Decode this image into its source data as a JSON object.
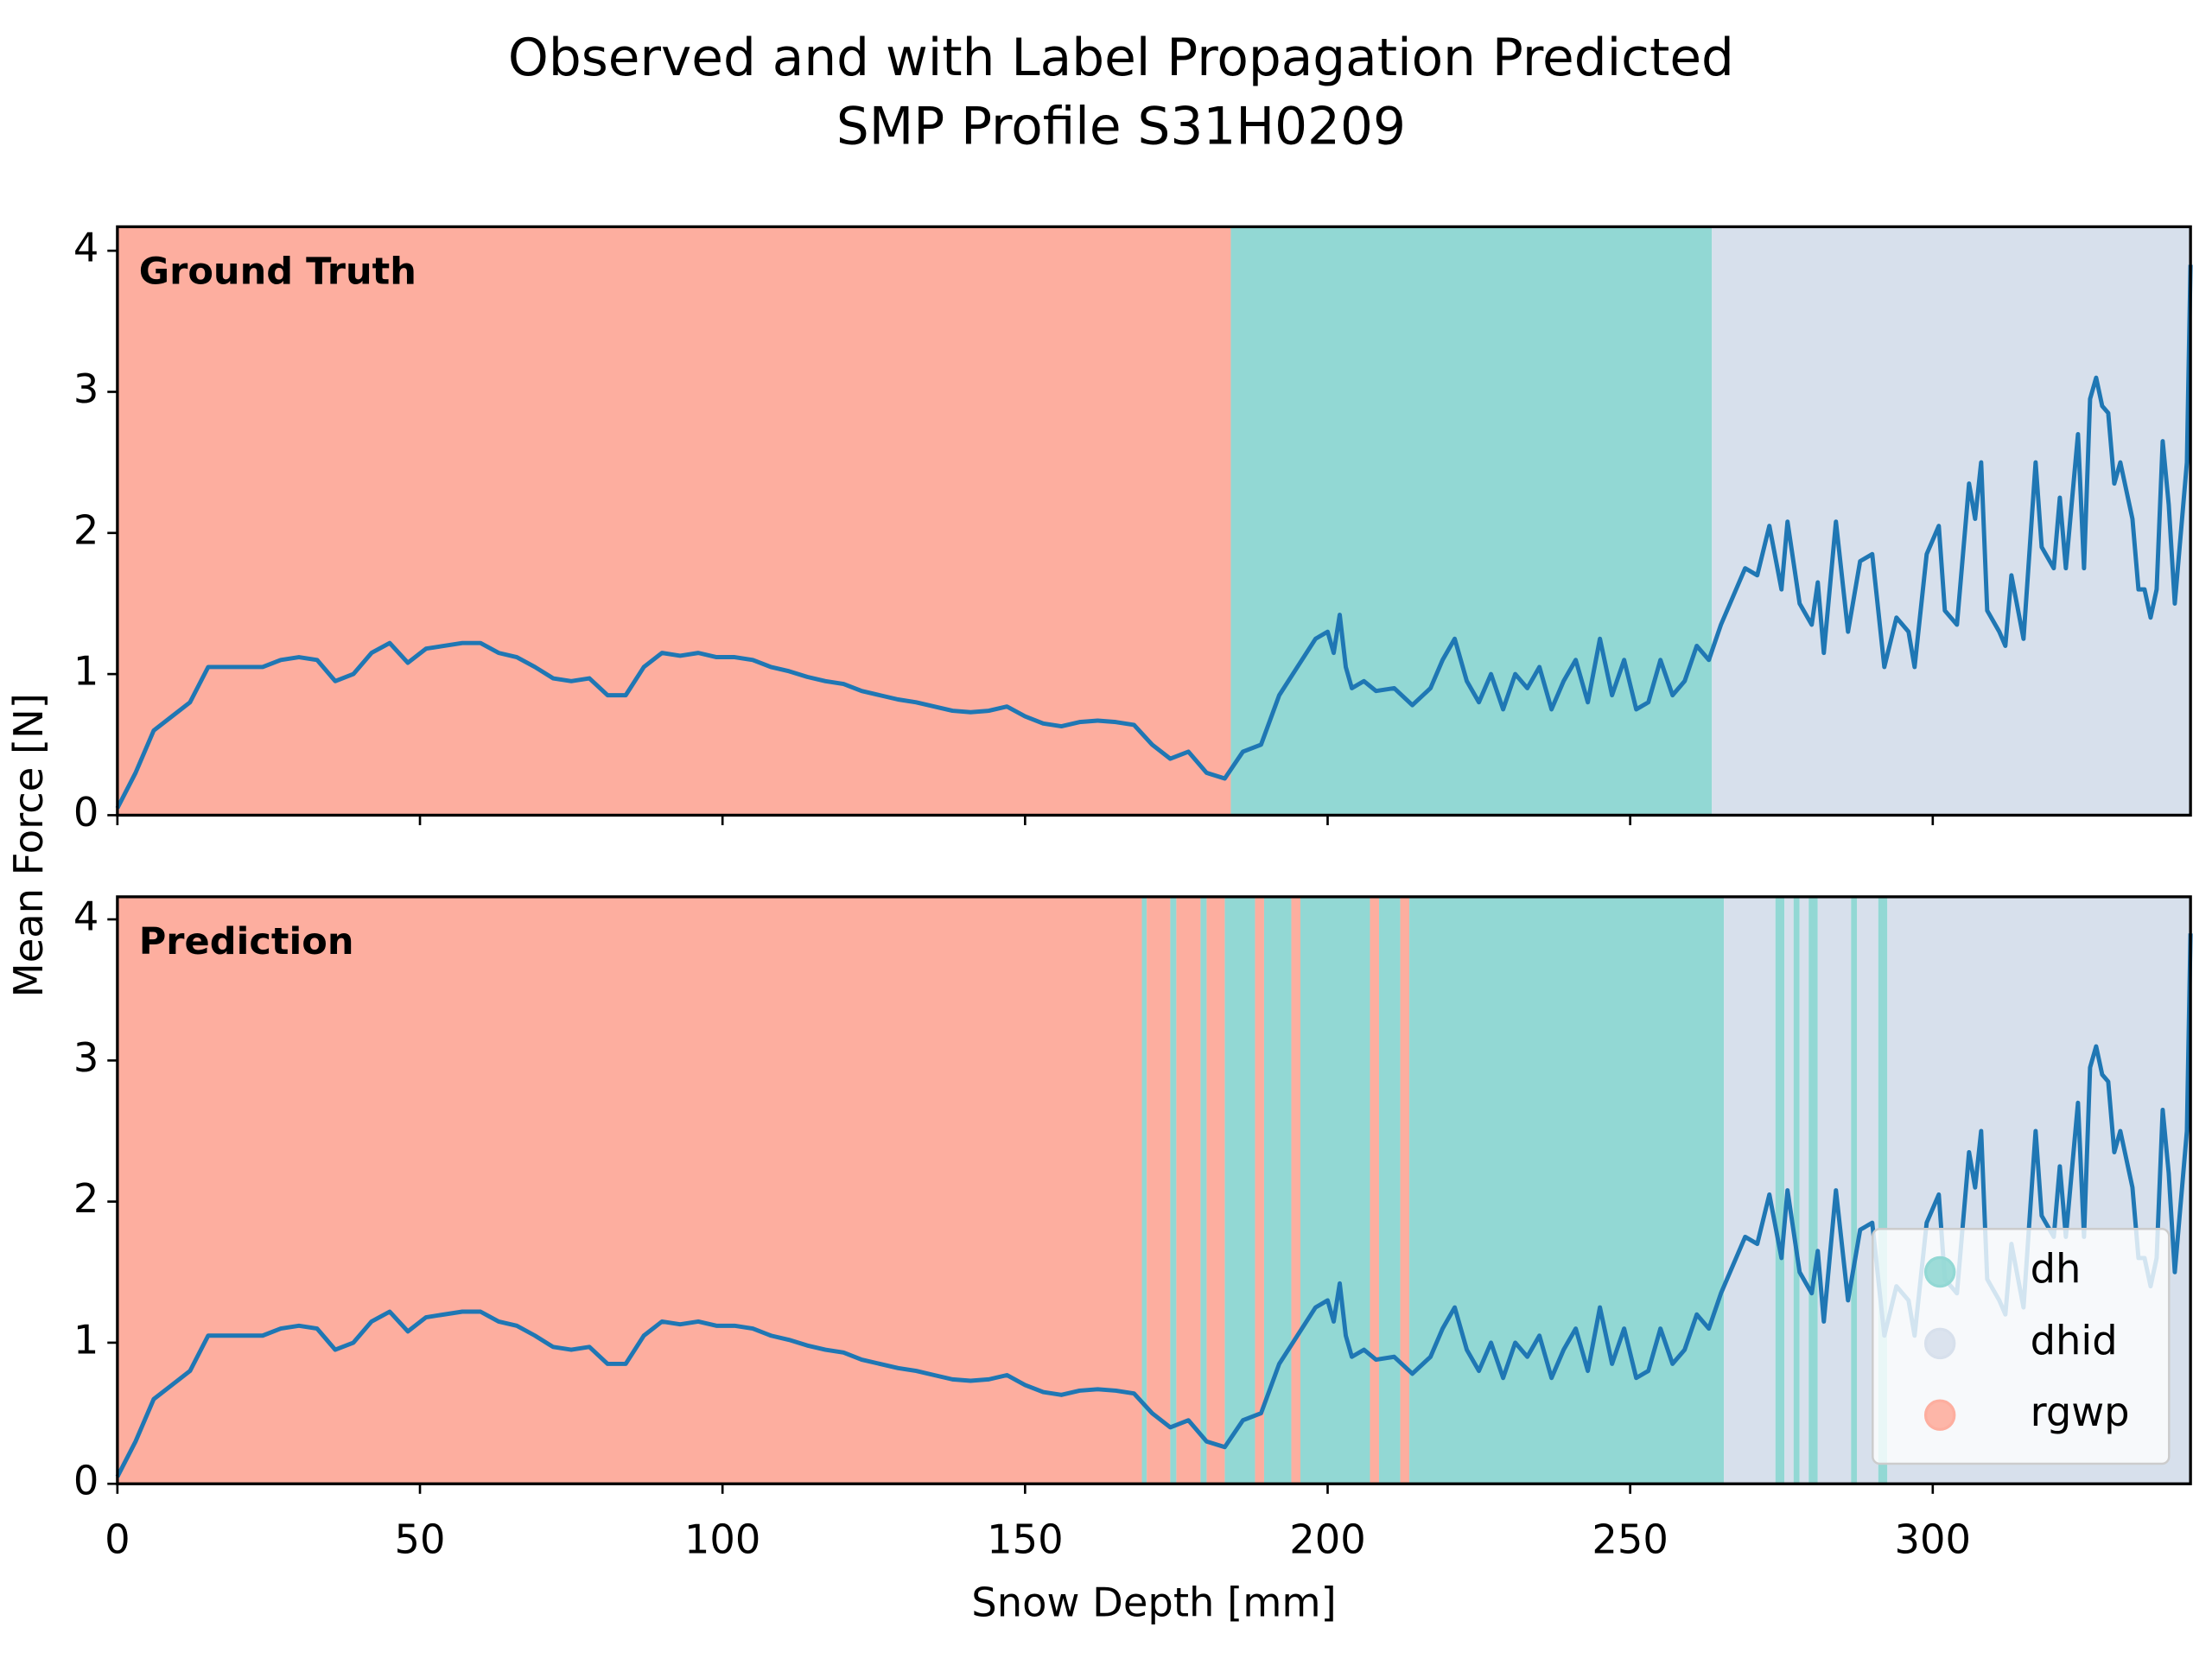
{
  "chart_data": [
    {
      "type": "line",
      "title": [
        "Observed and with Label Propagation Predicted",
        "SMP Profile S31H0209"
      ],
      "ylabel": "Mean Force [N]",
      "annotation": "Ground Truth",
      "color": "#1f77b4",
      "xlim": [
        0,
        342.6
      ],
      "ylim": [
        0,
        4.17
      ],
      "xticks": [
        0,
        50,
        100,
        150,
        200,
        250,
        300
      ],
      "yticks": [
        0,
        1,
        2,
        3,
        4
      ],
      "xticklabels": false,
      "x": [
        0,
        3,
        6,
        9,
        12,
        15,
        18,
        21,
        24,
        27,
        30,
        33,
        36,
        39,
        42,
        45,
        48,
        51,
        54,
        57,
        60,
        63,
        66,
        69,
        72,
        75,
        78,
        81,
        84,
        87,
        90,
        93,
        96,
        99,
        102,
        105,
        108,
        111,
        114,
        117,
        120,
        123,
        126,
        129,
        132,
        135,
        138,
        141,
        144,
        147,
        150,
        153,
        156,
        159,
        162,
        165,
        168,
        171,
        174,
        177,
        180,
        183,
        186,
        189,
        192,
        195,
        198,
        200,
        201,
        202,
        203,
        204,
        206,
        208,
        211,
        214,
        217,
        219,
        221,
        223,
        225,
        227,
        229,
        231,
        233,
        235,
        237,
        239,
        241,
        243,
        245,
        247,
        249,
        251,
        253,
        255,
        257,
        259,
        261,
        263,
        265,
        267,
        269,
        271,
        273,
        275,
        276,
        278,
        280,
        281,
        282,
        284,
        286,
        288,
        290,
        292,
        294,
        296,
        297,
        299,
        301,
        302,
        304,
        306,
        307,
        308,
        309,
        311,
        312,
        313,
        315,
        317,
        318,
        320,
        321,
        322,
        324,
        325,
        326,
        327,
        328,
        329,
        330,
        331,
        333,
        334,
        335,
        336,
        337,
        338,
        339,
        340,
        341,
        342,
        342.6
      ],
      "values": [
        0.05,
        0.3,
        0.6,
        0.7,
        0.8,
        1.05,
        1.05,
        1.05,
        1.05,
        1.1,
        1.12,
        1.1,
        0.95,
        1.0,
        1.15,
        1.22,
        1.08,
        1.18,
        1.2,
        1.22,
        1.22,
        1.15,
        1.12,
        1.05,
        0.97,
        0.95,
        0.97,
        0.85,
        0.85,
        1.05,
        1.15,
        1.13,
        1.15,
        1.12,
        1.12,
        1.1,
        1.05,
        1.02,
        0.98,
        0.95,
        0.93,
        0.88,
        0.85,
        0.82,
        0.8,
        0.77,
        0.74,
        0.73,
        0.74,
        0.77,
        0.7,
        0.65,
        0.63,
        0.66,
        0.67,
        0.66,
        0.64,
        0.5,
        0.4,
        0.45,
        0.3,
        0.26,
        0.45,
        0.5,
        0.85,
        1.05,
        1.25,
        1.3,
        1.15,
        1.42,
        1.05,
        0.9,
        0.95,
        0.88,
        0.9,
        0.78,
        0.9,
        1.1,
        1.25,
        0.95,
        0.8,
        1.0,
        0.75,
        1.0,
        0.9,
        1.05,
        0.75,
        0.95,
        1.1,
        0.8,
        1.25,
        0.85,
        1.1,
        0.75,
        0.8,
        1.1,
        0.85,
        0.95,
        1.2,
        1.1,
        1.35,
        1.55,
        1.75,
        1.7,
        2.05,
        1.6,
        2.08,
        1.5,
        1.35,
        1.65,
        1.15,
        2.08,
        1.3,
        1.8,
        1.85,
        1.05,
        1.4,
        1.3,
        1.05,
        1.85,
        2.05,
        1.45,
        1.35,
        2.35,
        2.1,
        2.5,
        1.45,
        1.3,
        1.2,
        1.7,
        1.25,
        2.5,
        1.9,
        1.75,
        2.25,
        1.75,
        2.7,
        1.75,
        2.95,
        3.1,
        2.9,
        2.85,
        2.35,
        2.5,
        2.1,
        1.6,
        1.6,
        1.4,
        1.6,
        2.65,
        2.2,
        1.5,
        2.0,
        2.5,
        3.9
      ],
      "regions": [
        {
          "start": 0,
          "end": 184,
          "class": "rgwp",
          "color": "#fdae9f"
        },
        {
          "start": 184,
          "end": 263.5,
          "class": "dh",
          "color": "#92d8d4"
        },
        {
          "start": 263.5,
          "end": 342.6,
          "class": "dhid",
          "color": "#d7e0ec"
        }
      ]
    },
    {
      "type": "line",
      "xlabel": "Snow Depth [mm]",
      "annotation": "Prediction",
      "color": "#1f77b4",
      "xlim": [
        0,
        342.6
      ],
      "ylim": [
        0,
        4.16
      ],
      "xticks": [
        0,
        50,
        100,
        150,
        200,
        250,
        300
      ],
      "yticks": [
        0,
        1,
        2,
        3,
        4
      ],
      "xticklabels": true,
      "legend_position": "lower right",
      "legend": [
        {
          "name": "dh",
          "color": "#92d8d4"
        },
        {
          "name": "dhid",
          "color": "#d7e0ec"
        },
        {
          "name": "rgwp",
          "color": "#fdae9f"
        }
      ],
      "x": [
        0,
        3,
        6,
        9,
        12,
        15,
        18,
        21,
        24,
        27,
        30,
        33,
        36,
        39,
        42,
        45,
        48,
        51,
        54,
        57,
        60,
        63,
        66,
        69,
        72,
        75,
        78,
        81,
        84,
        87,
        90,
        93,
        96,
        99,
        102,
        105,
        108,
        111,
        114,
        117,
        120,
        123,
        126,
        129,
        132,
        135,
        138,
        141,
        144,
        147,
        150,
        153,
        156,
        159,
        162,
        165,
        168,
        171,
        174,
        177,
        180,
        183,
        186,
        189,
        192,
        195,
        198,
        200,
        201,
        202,
        203,
        204,
        206,
        208,
        211,
        214,
        217,
        219,
        221,
        223,
        225,
        227,
        229,
        231,
        233,
        235,
        237,
        239,
        241,
        243,
        245,
        247,
        249,
        251,
        253,
        255,
        257,
        259,
        261,
        263,
        265,
        267,
        269,
        271,
        273,
        275,
        276,
        278,
        280,
        281,
        282,
        284,
        286,
        288,
        290,
        292,
        294,
        296,
        297,
        299,
        301,
        302,
        304,
        306,
        307,
        308,
        309,
        311,
        312,
        313,
        315,
        317,
        318,
        320,
        321,
        322,
        324,
        325,
        326,
        327,
        328,
        329,
        330,
        331,
        333,
        334,
        335,
        336,
        337,
        338,
        339,
        340,
        341,
        342,
        342.6
      ],
      "values": [
        0.05,
        0.3,
        0.6,
        0.7,
        0.8,
        1.05,
        1.05,
        1.05,
        1.05,
        1.1,
        1.12,
        1.1,
        0.95,
        1.0,
        1.15,
        1.22,
        1.08,
        1.18,
        1.2,
        1.22,
        1.22,
        1.15,
        1.12,
        1.05,
        0.97,
        0.95,
        0.97,
        0.85,
        0.85,
        1.05,
        1.15,
        1.13,
        1.15,
        1.12,
        1.12,
        1.1,
        1.05,
        1.02,
        0.98,
        0.95,
        0.93,
        0.88,
        0.85,
        0.82,
        0.8,
        0.77,
        0.74,
        0.73,
        0.74,
        0.77,
        0.7,
        0.65,
        0.63,
        0.66,
        0.67,
        0.66,
        0.64,
        0.5,
        0.4,
        0.45,
        0.3,
        0.26,
        0.45,
        0.5,
        0.85,
        1.05,
        1.25,
        1.3,
        1.15,
        1.42,
        1.05,
        0.9,
        0.95,
        0.88,
        0.9,
        0.78,
        0.9,
        1.1,
        1.25,
        0.95,
        0.8,
        1.0,
        0.75,
        1.0,
        0.9,
        1.05,
        0.75,
        0.95,
        1.1,
        0.8,
        1.25,
        0.85,
        1.1,
        0.75,
        0.8,
        1.1,
        0.85,
        0.95,
        1.2,
        1.1,
        1.35,
        1.55,
        1.75,
        1.7,
        2.05,
        1.6,
        2.08,
        1.5,
        1.35,
        1.65,
        1.15,
        2.08,
        1.3,
        1.8,
        1.85,
        1.05,
        1.4,
        1.3,
        1.05,
        1.85,
        2.05,
        1.45,
        1.35,
        2.35,
        2.1,
        2.5,
        1.45,
        1.3,
        1.2,
        1.7,
        1.25,
        2.5,
        1.9,
        1.75,
        2.25,
        1.75,
        2.7,
        1.75,
        2.95,
        3.1,
        2.9,
        2.85,
        2.35,
        2.5,
        2.1,
        1.6,
        1.6,
        1.4,
        1.6,
        2.65,
        2.2,
        1.5,
        2.0,
        2.5,
        3.9
      ],
      "regions": [
        {
          "start": 0,
          "end": 169.3,
          "class": "rgwp",
          "color": "#fdae9f"
        },
        {
          "start": 169.3,
          "end": 170.1,
          "class": "dh",
          "color": "#92d8d4"
        },
        {
          "start": 170.1,
          "end": 174,
          "class": "rgwp",
          "color": "#fdae9f"
        },
        {
          "start": 174,
          "end": 175,
          "class": "dh",
          "color": "#92d8d4"
        },
        {
          "start": 175,
          "end": 179,
          "class": "rgwp",
          "color": "#fdae9f"
        },
        {
          "start": 179,
          "end": 180,
          "class": "dh",
          "color": "#92d8d4"
        },
        {
          "start": 180,
          "end": 183,
          "class": "rgwp",
          "color": "#fdae9f"
        },
        {
          "start": 183,
          "end": 188,
          "class": "dh",
          "color": "#92d8d4"
        },
        {
          "start": 188,
          "end": 189.5,
          "class": "rgwp",
          "color": "#fdae9f"
        },
        {
          "start": 189.5,
          "end": 194,
          "class": "dh",
          "color": "#92d8d4"
        },
        {
          "start": 194,
          "end": 195.5,
          "class": "rgwp",
          "color": "#fdae9f"
        },
        {
          "start": 195.5,
          "end": 207,
          "class": "dh",
          "color": "#92d8d4"
        },
        {
          "start": 207,
          "end": 208.5,
          "class": "rgwp",
          "color": "#fdae9f"
        },
        {
          "start": 208.5,
          "end": 212,
          "class": "dh",
          "color": "#92d8d4"
        },
        {
          "start": 212,
          "end": 213.5,
          "class": "rgwp",
          "color": "#fdae9f"
        },
        {
          "start": 213.5,
          "end": 265.5,
          "class": "dh",
          "color": "#92d8d4"
        },
        {
          "start": 265.5,
          "end": 274,
          "class": "dhid",
          "color": "#d7e0ec"
        },
        {
          "start": 274,
          "end": 275.5,
          "class": "dh",
          "color": "#92d8d4"
        },
        {
          "start": 275.5,
          "end": 277,
          "class": "dhid",
          "color": "#d7e0ec"
        },
        {
          "start": 277,
          "end": 278,
          "class": "dh",
          "color": "#92d8d4"
        },
        {
          "start": 278,
          "end": 279.5,
          "class": "dhid",
          "color": "#d7e0ec"
        },
        {
          "start": 279.5,
          "end": 281,
          "class": "dh",
          "color": "#92d8d4"
        },
        {
          "start": 281,
          "end": 286.5,
          "class": "dhid",
          "color": "#d7e0ec"
        },
        {
          "start": 286.5,
          "end": 287.5,
          "class": "dh",
          "color": "#92d8d4"
        },
        {
          "start": 287.5,
          "end": 291,
          "class": "dhid",
          "color": "#d7e0ec"
        },
        {
          "start": 291,
          "end": 292.5,
          "class": "dh",
          "color": "#92d8d4"
        },
        {
          "start": 292.5,
          "end": 342.6,
          "class": "dhid",
          "color": "#d7e0ec"
        }
      ]
    }
  ]
}
